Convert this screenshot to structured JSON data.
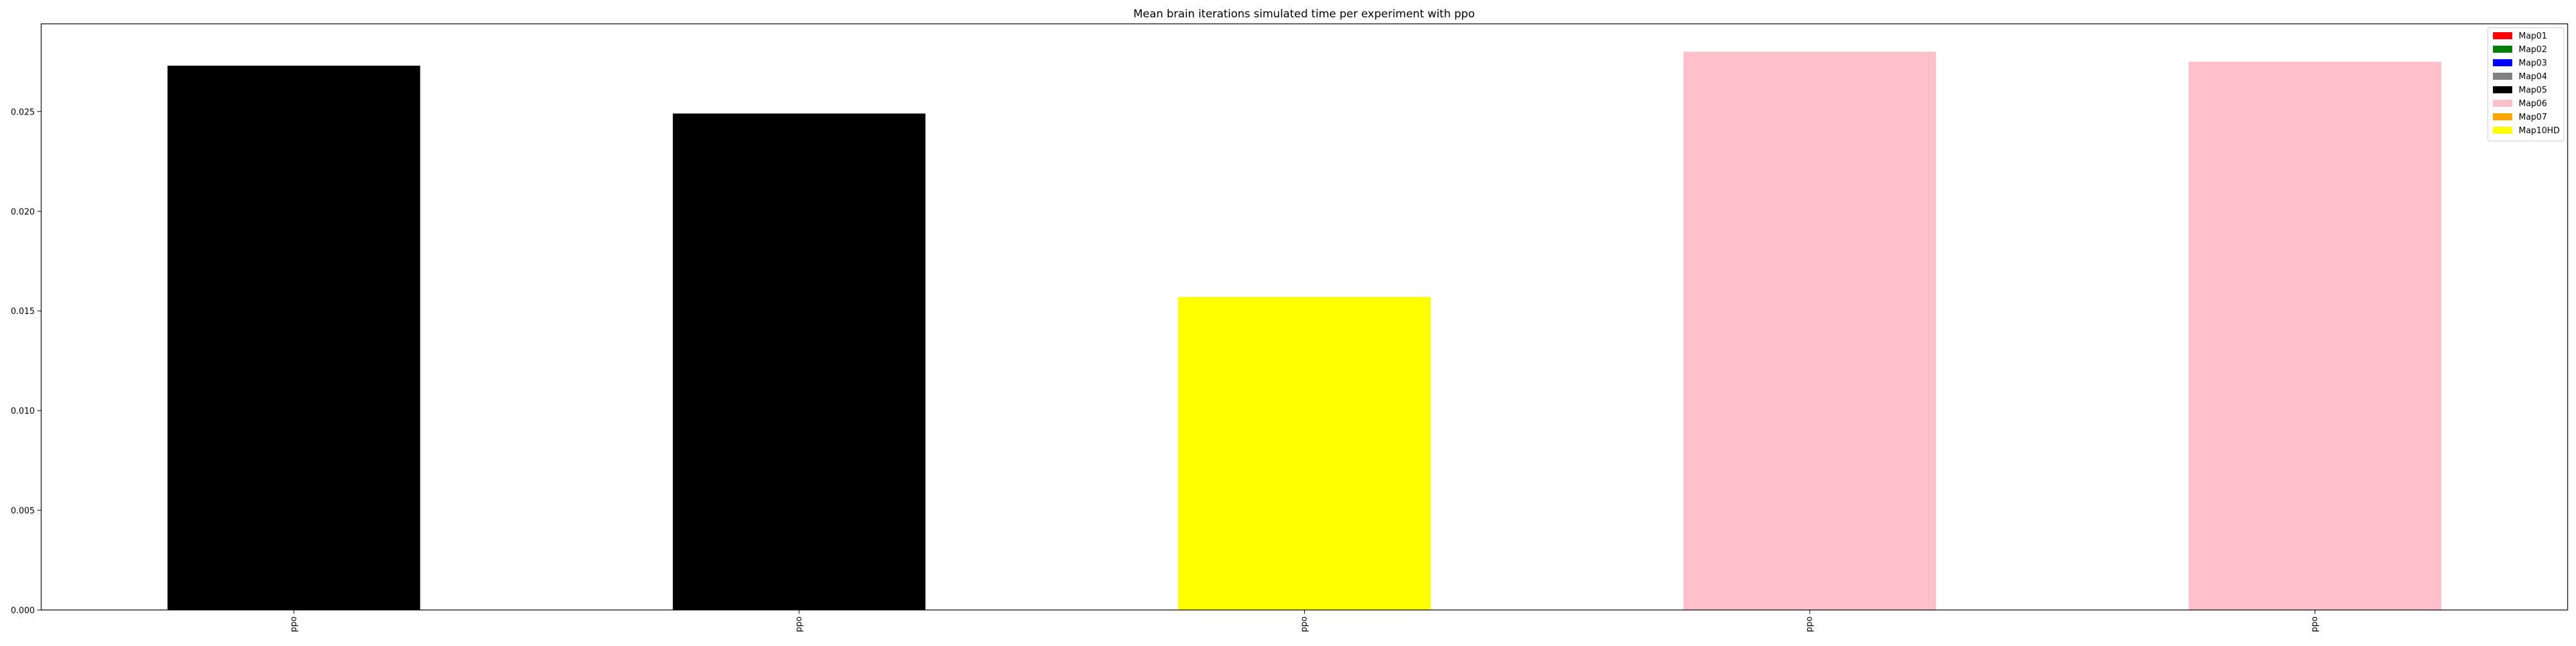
{
  "chart_data": {
    "type": "bar",
    "title": "Mean brain iterations simulated time per experiment with ppo",
    "xlabel": "",
    "ylabel": "",
    "categories": [
      "ppo",
      "ppo",
      "ppo",
      "ppo",
      "ppo"
    ],
    "values": [
      0.0273,
      0.0249,
      0.0157,
      0.028,
      0.0275
    ],
    "bar_colors": [
      "#000000",
      "#000000",
      "#ffff00",
      "#ffc0cb",
      "#ffc0cb"
    ],
    "ylim": [
      0,
      0.0294
    ],
    "yticks": [
      0.0,
      0.005,
      0.01,
      0.015,
      0.02,
      0.025
    ],
    "ytick_labels": [
      "0.000",
      "0.005",
      "0.010",
      "0.015",
      "0.020",
      "0.025"
    ],
    "grid": false,
    "legend_position": "top-right",
    "legend": [
      {
        "label": "Map01",
        "color": "#ff0000"
      },
      {
        "label": "Map02",
        "color": "#008000"
      },
      {
        "label": "Map03",
        "color": "#0000ff"
      },
      {
        "label": "Map04",
        "color": "#808080"
      },
      {
        "label": "Map05",
        "color": "#000000"
      },
      {
        "label": "Map06",
        "color": "#ffc0cb"
      },
      {
        "label": "Map07",
        "color": "#ffa500"
      },
      {
        "label": "Map10HD",
        "color": "#ffff00"
      }
    ]
  }
}
